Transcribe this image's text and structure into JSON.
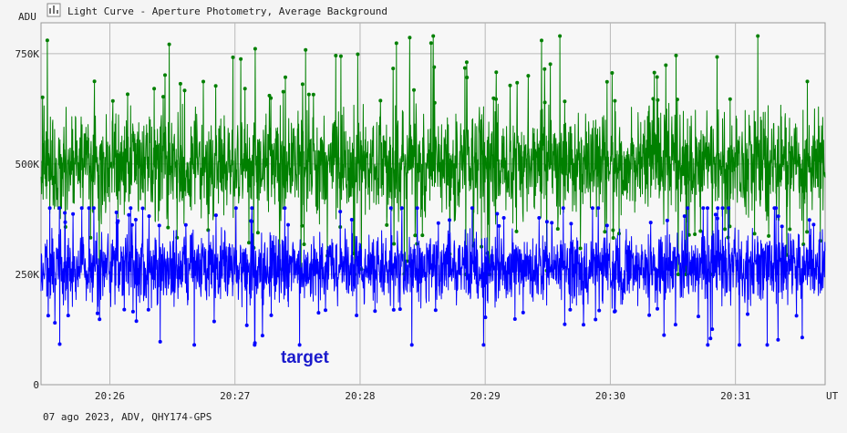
{
  "window": {
    "title": "Light Curve - Aperture Photometry, Average Background",
    "icon": "chart-icon"
  },
  "footer": {
    "caption": "07 ago 2023, ADV, QHY174-GPS"
  },
  "chart_data": {
    "type": "scatter",
    "title": "Light Curve - Aperture Photometry, Average Background",
    "xlabel": "UT",
    "ylabel": "ADU",
    "x_start": "20:25:27",
    "x_end": "20:31:43",
    "xlim": [
      "20:25:27",
      "20:31:43"
    ],
    "ylim": [
      0,
      820000
    ],
    "x_ticks": [
      "20:26",
      "20:27",
      "20:28",
      "20:29",
      "20:30",
      "20:31"
    ],
    "y_ticks": [
      {
        "value": 0,
        "label": "0"
      },
      {
        "value": 250000,
        "label": "250K"
      },
      {
        "value": 500000,
        "label": "500K"
      },
      {
        "value": 750000,
        "label": "750K"
      }
    ],
    "grid": true,
    "series": [
      {
        "name": "target",
        "color": "#0000ff",
        "mean": 265000,
        "spread": 40000,
        "min": 90000,
        "max": 400000,
        "label_position": "lower-left"
      },
      {
        "name": "",
        "color": "#008000",
        "mean": 500000,
        "spread": 60000,
        "min": 250000,
        "max": 790000
      }
    ],
    "series_label": "target",
    "series_label_color": "#1a1acc"
  }
}
